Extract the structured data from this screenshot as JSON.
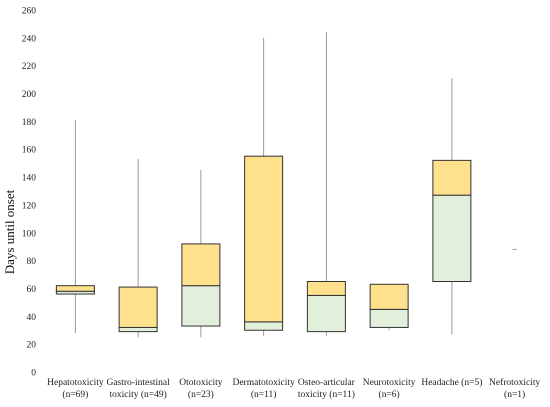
{
  "chart_data": {
    "type": "boxplot",
    "title": "",
    "ylabel": "Days  until onset",
    "xlabel": "",
    "ylim": [
      0,
      260
    ],
    "yticks": [
      0,
      20,
      40,
      60,
      80,
      100,
      120,
      140,
      160,
      180,
      200,
      220,
      240,
      260
    ],
    "grid": false,
    "colors": {
      "upper_box": "#ffe08c",
      "lower_box": "#e2efda",
      "border": "#333333",
      "whisker": "#9a9a9a"
    },
    "categories": [
      {
        "line1": "Hepatotoxicity",
        "line2": "(n=69)",
        "min": 28,
        "q1": 56,
        "median": 58,
        "q3": 62,
        "max": 181
      },
      {
        "line1": "Gastro-intestinal",
        "line2": "toxicity (n=49)",
        "min": 25,
        "q1": 29,
        "median": 32,
        "q3": 61,
        "max": 153
      },
      {
        "line1": "Ototoxicity",
        "line2": "(n=23)",
        "min": 25,
        "q1": 33,
        "median": 62,
        "q3": 92,
        "max": 145
      },
      {
        "line1": "Dermatotoxicity",
        "line2": "(n=11)",
        "min": 26,
        "q1": 30,
        "median": 36,
        "q3": 155,
        "max": 240
      },
      {
        "line1": "Osteo-articular",
        "line2": "toxicity (n=11)",
        "min": 26,
        "q1": 29,
        "median": 55,
        "q3": 65,
        "max": 244
      },
      {
        "line1": "Neurotoxicity",
        "line2": "(n=6)",
        "min": 30,
        "q1": 32,
        "median": 45,
        "q3": 63,
        "max": 63
      },
      {
        "line1": "Headache (n=5)",
        "line2": "",
        "min": 27,
        "q1": 65,
        "median": 127,
        "q3": 152,
        "max": 211
      },
      {
        "line1": "Nefrotoxicity",
        "line2": "(n=1)",
        "min": 88,
        "q1": 88,
        "median": 88,
        "q3": 88,
        "max": 88
      }
    ]
  }
}
